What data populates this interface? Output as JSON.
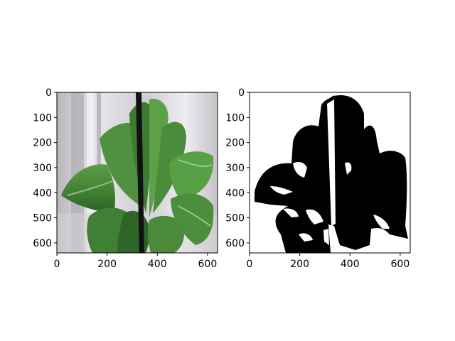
{
  "chart_data": [
    {
      "type": "image",
      "content": "plant-photo",
      "xlim": [
        0,
        640
      ],
      "ylim": [
        640,
        0
      ],
      "xticks": [
        0,
        200,
        400,
        600
      ],
      "yticks": [
        0,
        100,
        200,
        300,
        400,
        500,
        600
      ],
      "xtick_labels": [
        "0",
        "200",
        "400",
        "600"
      ],
      "ytick_labels": [
        "0",
        "100",
        "200",
        "300",
        "400",
        "500",
        "600"
      ],
      "colors": {
        "background": "#c9c7cc",
        "leaf": "#4c8f3b",
        "leaf_dark": "#1f4a1a",
        "stem": "#111111"
      }
    },
    {
      "type": "image",
      "content": "binary-mask",
      "xlim": [
        0,
        640
      ],
      "ylim": [
        640,
        0
      ],
      "xticks": [
        0,
        200,
        400,
        600
      ],
      "yticks": [
        0,
        100,
        200,
        300,
        400,
        500,
        600
      ],
      "xtick_labels": [
        "0",
        "200",
        "400",
        "600"
      ],
      "ytick_labels": [
        "0",
        "100",
        "200",
        "300",
        "400",
        "500",
        "600"
      ],
      "colors": {
        "mask": "#000000",
        "background": "#ffffff"
      }
    }
  ]
}
